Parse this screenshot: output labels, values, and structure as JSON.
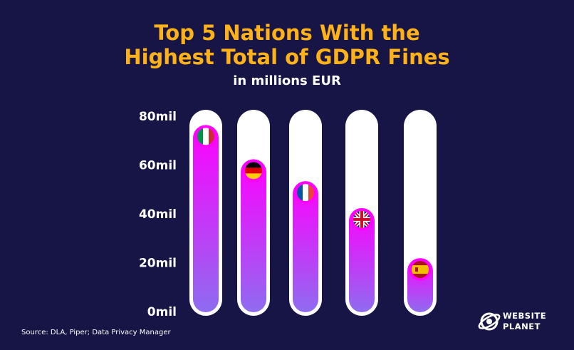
{
  "header": {
    "title_line1": "Top 5 Nations With the",
    "title_line2": "Highest Total of GDPR Fines",
    "subtitle": "in millions EUR"
  },
  "footer": {
    "source": "Source: DLA, Piper; Data Privacy Manager",
    "logo_line1": "WEBSITE",
    "logo_line2": "PLANET"
  },
  "colors": {
    "background": "#161545",
    "title": "#ffb118",
    "track": "#ffffff",
    "bar_top": "#ff00ff",
    "bar_bottom": "#8e6cf0"
  },
  "chart_data": {
    "type": "bar",
    "title": "Top 5 Nations With the Highest Total of GDPR Fines",
    "subtitle": "in millions EUR",
    "ylim": [
      0,
      80
    ],
    "yticks": [
      0,
      20,
      40,
      60,
      80
    ],
    "ytick_labels": [
      "0mil",
      "20mil",
      "40mil",
      "60mil",
      "80mil"
    ],
    "categories": [
      "Italy",
      "Germany",
      "France",
      "United Kingdom",
      "Spain"
    ],
    "flags": [
      "italy-flag-icon",
      "germany-flag-icon",
      "france-flag-icon",
      "uk-flag-icon",
      "spain-flag-icon"
    ],
    "values": [
      72,
      58,
      49,
      38,
      17.5
    ]
  }
}
